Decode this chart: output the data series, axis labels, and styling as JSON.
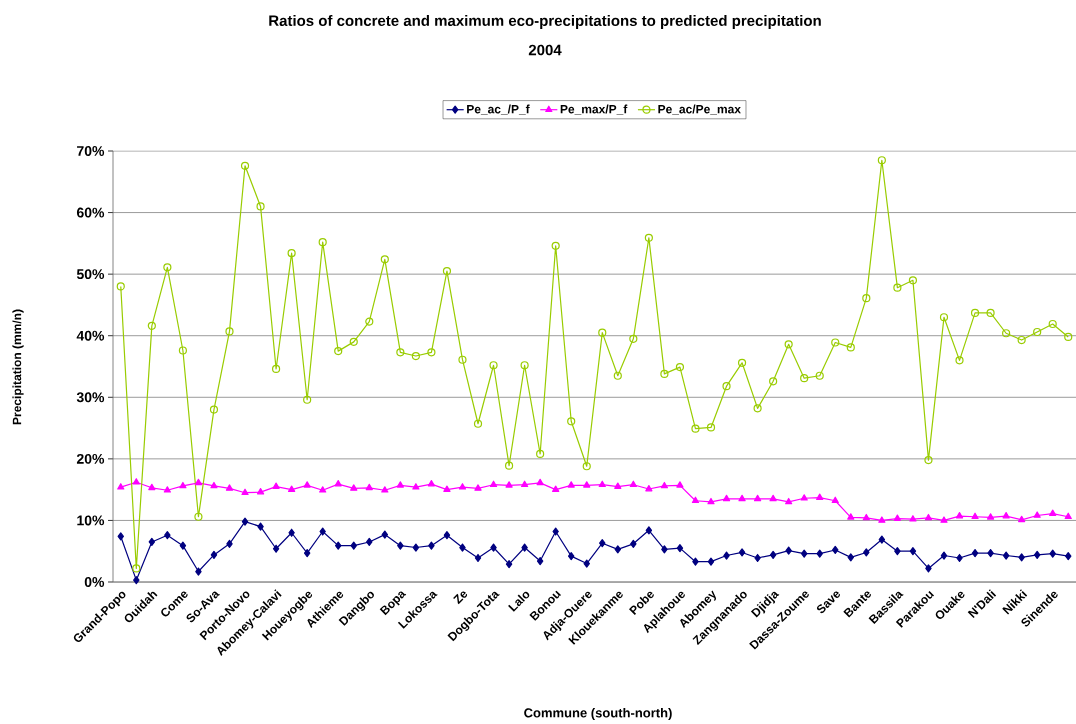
{
  "chart_data": {
    "type": "line",
    "title": "Ratios of concrete and maximum eco-precipitations to predicted precipitation",
    "subtitle": "2004",
    "xlabel": "Commune (south-north)",
    "ylabel": "Precipitation (mm/n)",
    "categories": [
      "Grand-Popo",
      null,
      "Ouidah",
      null,
      "Come",
      null,
      "So-Ava",
      null,
      "Porto-Novo",
      null,
      "Abomey-Calavi",
      null,
      "Houeyogbe",
      null,
      "Athieme",
      null,
      "Dangbo",
      null,
      "Bopa",
      null,
      "Lokossa",
      null,
      "Ze",
      null,
      "Dogbo-Tota",
      null,
      "Lalo",
      null,
      "Bonou",
      null,
      "Adja-Ouere",
      null,
      "Klouekanme",
      null,
      "Pobe",
      null,
      "Aplahoue",
      null,
      "Abomey",
      null,
      "Zangnanado",
      null,
      "Djidja",
      null,
      "Dassa-Zoume",
      null,
      "Save",
      null,
      "Bante",
      null,
      "Bassila",
      null,
      "Parakou",
      null,
      "Ouake",
      null,
      "N'Dali",
      null,
      "Nikki",
      null,
      "Sinende",
      null
    ],
    "series": [
      {
        "name": "Pe_ac_/P_f",
        "color": "#000080",
        "marker": "diamond",
        "values": [
          7.4,
          0.3,
          6.5,
          7.6,
          5.9,
          1.7,
          4.4,
          6.2,
          9.8,
          9.0,
          5.4,
          8.0,
          4.7,
          8.2,
          5.9,
          5.9,
          6.5,
          7.7,
          5.9,
          5.6,
          5.9,
          7.6,
          5.6,
          3.9,
          5.6,
          2.9,
          5.6,
          3.4,
          8.2,
          4.2,
          3.0,
          6.3,
          5.3,
          6.2,
          8.4,
          5.3,
          5.5,
          3.3,
          3.3,
          4.3,
          4.8,
          3.9,
          4.4,
          5.1,
          4.6,
          4.6,
          5.2,
          4.0,
          4.8,
          6.9,
          5.0,
          5.0,
          2.2,
          4.3,
          3.9,
          4.7,
          4.7,
          4.3,
          4.0,
          4.4,
          4.6,
          4.2
        ]
      },
      {
        "name": "Pe_max/P_f",
        "color": "#ff00ff",
        "marker": "triangle",
        "values": [
          15.4,
          16.2,
          15.3,
          14.9,
          15.6,
          16.1,
          15.6,
          15.2,
          14.5,
          14.6,
          15.5,
          15.0,
          15.7,
          14.9,
          15.9,
          15.2,
          15.3,
          14.9,
          15.7,
          15.4,
          15.9,
          15.0,
          15.4,
          15.2,
          15.8,
          15.7,
          15.8,
          16.1,
          15.0,
          15.7,
          15.7,
          15.8,
          15.5,
          15.8,
          15.1,
          15.6,
          15.7,
          13.2,
          13.0,
          13.5,
          13.5,
          13.5,
          13.5,
          13.0,
          13.6,
          13.7,
          13.2,
          10.5,
          10.4,
          10.0,
          10.3,
          10.2,
          10.4,
          10.0,
          10.7,
          10.6,
          10.5,
          10.7,
          10.1,
          10.8,
          11.1,
          10.6
        ]
      },
      {
        "name": "Pe_ac/Pe_max",
        "color": "#99cc00",
        "marker": "circle",
        "values": [
          48.0,
          2.2,
          41.6,
          51.1,
          37.6,
          10.6,
          28.0,
          40.7,
          67.6,
          61.0,
          34.6,
          53.4,
          29.6,
          55.2,
          37.5,
          39.0,
          42.3,
          52.4,
          37.3,
          36.7,
          37.3,
          50.5,
          36.1,
          25.7,
          35.2,
          18.9,
          35.2,
          20.8,
          54.6,
          26.1,
          18.8,
          40.5,
          33.5,
          39.5,
          55.9,
          33.8,
          34.9,
          24.9,
          25.1,
          31.8,
          35.6,
          28.2,
          32.6,
          38.6,
          33.1,
          33.5,
          38.9,
          38.1,
          46.1,
          68.5,
          47.8,
          49.0,
          19.8,
          43.0,
          36.0,
          43.7,
          43.7,
          40.4,
          39.3,
          40.6,
          41.9,
          39.8
        ]
      }
    ],
    "ylim": [
      0,
      70
    ],
    "yticks": [
      {
        "value": 0,
        "label": "0%"
      },
      {
        "value": 10,
        "label": "10%"
      },
      {
        "value": 20,
        "label": "20%"
      },
      {
        "value": 30,
        "label": "30%"
      },
      {
        "value": 40,
        "label": "40%"
      },
      {
        "value": 50,
        "label": "50%"
      },
      {
        "value": 60,
        "label": "60%"
      },
      {
        "value": 70,
        "label": "70%"
      }
    ],
    "grid": "y",
    "legend": "top",
    "line_style": "solid"
  }
}
